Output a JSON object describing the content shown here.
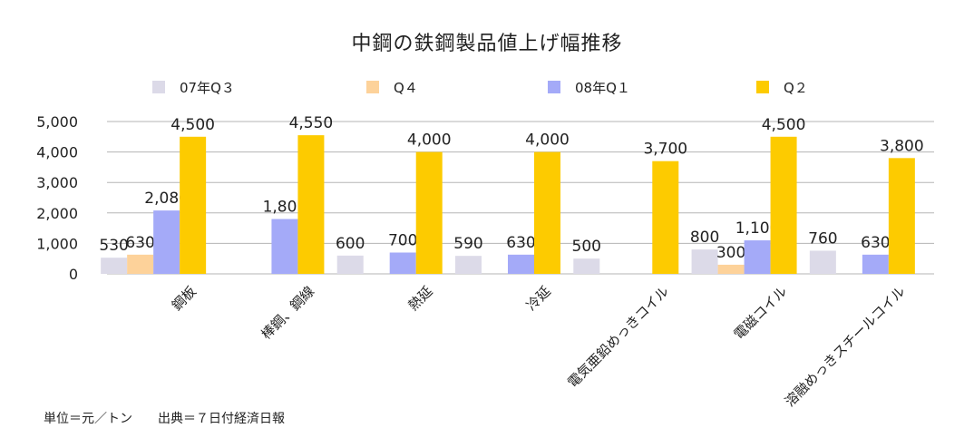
{
  "chart_data": {
    "type": "bar",
    "title": "中鋼の鉄鋼製品値上げ幅推移",
    "categories": [
      "鋼板",
      "棒鋼、鋼線",
      "熱延",
      "冷延",
      "電気亜鉛めっきコイル",
      "電磁コイル",
      "溶融めっきスチールコイル"
    ],
    "series": [
      {
        "name": "07年Q３",
        "color": "#dcdae8",
        "values": [
          530,
          null,
          600,
          590,
          500,
          800,
          760
        ]
      },
      {
        "name": "Q４",
        "color": "#fdd29a",
        "values": [
          630,
          null,
          null,
          null,
          null,
          300,
          null
        ]
      },
      {
        "name": "08年Q１",
        "color": "#a4aaf8",
        "values": [
          2080,
          1800,
          700,
          630,
          null,
          1100,
          630
        ]
      },
      {
        "name": "Q２",
        "color": "#fdcb00",
        "values": [
          4500,
          4550,
          4000,
          4000,
          3700,
          4500,
          3800
        ]
      }
    ],
    "value_labels": [
      [
        "530",
        null,
        "600",
        "590",
        "500",
        "800",
        "760"
      ],
      [
        "630",
        null,
        null,
        null,
        null,
        "300",
        null
      ],
      [
        "2,080",
        "1,800",
        "700",
        "630",
        null,
        "1,100",
        "630"
      ],
      [
        "4,500",
        "4,550",
        "4,000",
        "4,000",
        "3,700",
        "4,500",
        "3,800"
      ]
    ],
    "yticks": [
      0,
      1000,
      2000,
      3000,
      4000,
      5000
    ],
    "ytick_labels": [
      "0",
      "1,000",
      "2,000",
      "3,000",
      "4,000",
      "5,000"
    ],
    "ylim": [
      0,
      5000
    ],
    "grid": true,
    "legend": "top",
    "xlabel": "",
    "ylabel": ""
  },
  "footer": "単位＝元／トン　　出典＝７日付経済日報"
}
